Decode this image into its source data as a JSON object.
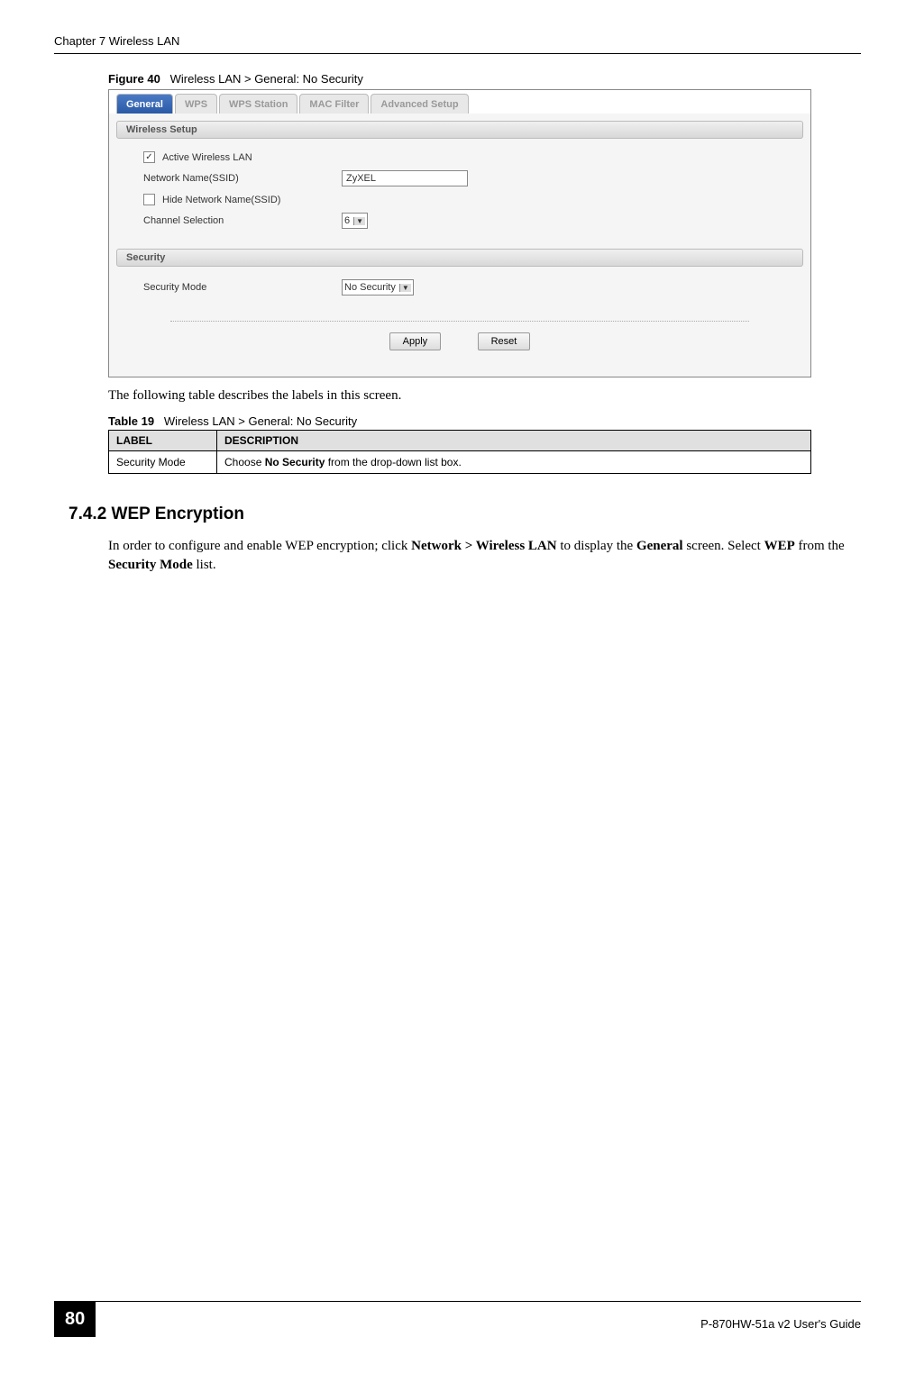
{
  "header": {
    "chapter_title": "Chapter 7 Wireless LAN"
  },
  "figure": {
    "label": "Figure 40",
    "caption": "Wireless LAN > General: No Security"
  },
  "screenshot": {
    "tabs": {
      "general": "General",
      "wps": "WPS",
      "wps_station": "WPS Station",
      "mac_filter": "MAC Filter",
      "advanced_setup": "Advanced Setup"
    },
    "wireless_setup": {
      "section_title": "Wireless Setup",
      "active_label": "Active Wireless LAN",
      "active_checked": "✓",
      "ssid_label": "Network Name(SSID)",
      "ssid_value": "ZyXEL",
      "hide_label": "Hide Network Name(SSID)",
      "channel_label": "Channel Selection",
      "channel_value": "6"
    },
    "security": {
      "section_title": "Security",
      "mode_label": "Security Mode",
      "mode_value": "No Security"
    },
    "buttons": {
      "apply": "Apply",
      "reset": "Reset"
    }
  },
  "body_text_1": "The following table describes the labels in this screen.",
  "table": {
    "label": "Table 19",
    "caption": "Wireless LAN > General: No Security",
    "header_label": "LABEL",
    "header_desc": "DESCRIPTION",
    "row0_label": "Security Mode",
    "row0_desc_pre": "Choose ",
    "row0_desc_bold": "No Security",
    "row0_desc_post": " from the drop-down list box."
  },
  "section": {
    "heading": "7.4.2  WEP Encryption",
    "paragraph_pre": "In order to configure and enable WEP encryption; click ",
    "nav_bold1": "Network > Wireless LAN",
    "mid1": " to display the ",
    "nav_bold2": "General",
    "mid2": " screen. Select ",
    "nav_bold3": "WEP",
    "mid3": " from the ",
    "nav_bold4": "Security Mode",
    "mid4": " list."
  },
  "footer": {
    "page_number": "80",
    "guide_name": "P-870HW-51a v2 User's Guide"
  }
}
